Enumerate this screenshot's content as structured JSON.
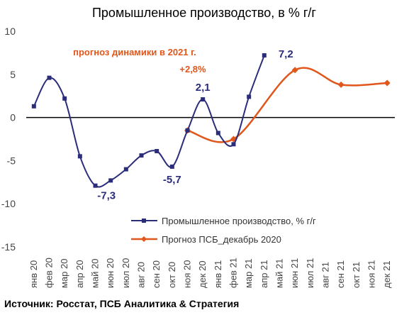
{
  "chart_data": {
    "type": "line",
    "title": "Промышленное производство, в % г/г",
    "source": "Источник: Росстат, ПСБ Аналитика & Стратегия",
    "categories": [
      "янв 20",
      "фев 20",
      "мар 20",
      "апр 20",
      "май 20",
      "июн 20",
      "июл 20",
      "авг 20",
      "сен 20",
      "окт 20",
      "ноя 20",
      "дек 20",
      "янв 21",
      "фев 21",
      "мар 21",
      "апр 21",
      "май 21",
      "июн 21",
      "июл 21",
      "авг 21",
      "сен 21",
      "окт 21",
      "ноя 21",
      "дек 21"
    ],
    "ylim": [
      -15,
      10
    ],
    "yticks": [
      10,
      5,
      0,
      -5,
      -10,
      -15
    ],
    "series": [
      {
        "name": "Промышленное производство, % г/г",
        "color": "#2b2d7a",
        "marker": "square",
        "values": [
          1.3,
          4.6,
          2.2,
          -4.5,
          -7.9,
          -7.3,
          -6.0,
          -4.4,
          -3.9,
          -5.7,
          -1.5,
          2.1,
          -1.8,
          -3.1,
          2.4,
          7.2,
          null,
          null,
          null,
          null,
          null,
          null,
          null,
          null
        ]
      },
      {
        "name": "Прогноз ПСБ_декабрь 2020",
        "color": "#e0561b",
        "marker": "diamond",
        "values": [
          null,
          null,
          null,
          null,
          null,
          null,
          null,
          null,
          null,
          null,
          -1.5,
          null,
          null,
          -2.5,
          null,
          null,
          null,
          5.5,
          null,
          null,
          3.8,
          null,
          null,
          4.0
        ]
      }
    ],
    "data_labels": [
      {
        "text": "2,1",
        "color": "#2b2d7a"
      },
      {
        "text": "-7,3",
        "color": "#2b2d7a"
      },
      {
        "text": "-5,7",
        "color": "#2b2d7a"
      },
      {
        "text": "7,2",
        "color": "#2b2d7a"
      }
    ],
    "annotation": {
      "line1": "прогноз динамики в 2021 г.",
      "line2": "+2,8%",
      "color": "#e0561b"
    },
    "legend_position": "bottom-right",
    "zero_line": true,
    "grid": false
  }
}
